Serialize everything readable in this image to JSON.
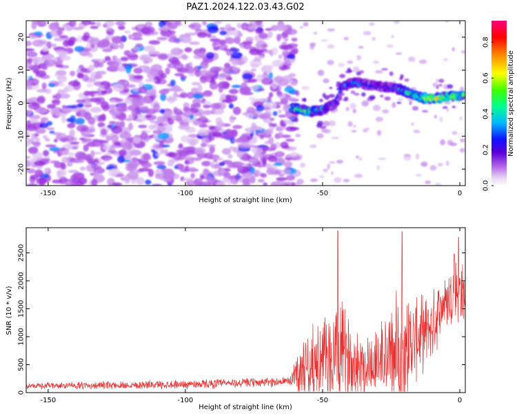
{
  "chart_data": [
    {
      "type": "heatmap",
      "title": "PAZ1.2024.122.03.43.G02",
      "xlabel": "Height of straight line (km)",
      "ylabel": "Frequency (Hz)",
      "xlim": [
        -158,
        2
      ],
      "ylim": [
        -25,
        25
      ],
      "x_ticks": [
        -150,
        -100,
        -50,
        0
      ],
      "y_ticks": [
        -20,
        -10,
        0,
        10,
        20
      ],
      "grid": false,
      "colorbar": {
        "label": "Normalized spectral amplitude",
        "range": [
          0,
          0.92
        ],
        "ticks": [
          0.0,
          0.2,
          0.4,
          0.6,
          0.8
        ],
        "colormap": [
          "#ffffff",
          "#d8b4f0",
          "#9b30e0",
          "#6a00d0",
          "#1010ff",
          "#00c0ff",
          "#00ff80",
          "#40ff00",
          "#ffff00",
          "#ff8000",
          "#ff0000",
          "#ff0080"
        ]
      },
      "background_noise": {
        "x_range": [
          -158,
          -60
        ],
        "y_range": [
          -25,
          25
        ],
        "typical_amplitude": 0.1,
        "max_amplitude": 0.35
      },
      "ridge": {
        "description_points_x": [
          -61,
          -55,
          -50,
          -45,
          -43,
          -38,
          -33,
          -28,
          -23,
          -18,
          -13,
          -8,
          -3,
          2
        ],
        "description_points_y": [
          -1.5,
          -2.5,
          -2.0,
          0.0,
          5.0,
          6.5,
          5.5,
          5.0,
          4.5,
          3.0,
          1.5,
          1.5,
          2.0,
          2.5
        ],
        "amplitude": [
          0.45,
          0.5,
          0.35,
          0.25,
          0.3,
          0.35,
          0.3,
          0.25,
          0.3,
          0.45,
          0.55,
          0.7,
          0.55,
          0.45
        ]
      }
    },
    {
      "type": "line",
      "xlabel": "Height of straight line (km)",
      "ylabel": "SNR (10 * v/v)",
      "xlim": [
        -158,
        2
      ],
      "ylim": [
        0,
        2950
      ],
      "x_ticks": [
        -150,
        -100,
        -50,
        0
      ],
      "y_ticks": [
        0,
        500,
        1000,
        1500,
        2000,
        2500
      ],
      "grid": false,
      "series": [
        {
          "color": "#e83030",
          "envelope_x": [
            -158,
            -130,
            -100,
            -80,
            -62,
            -60,
            -55,
            -50,
            -46,
            -44,
            -42,
            -38,
            -34,
            -30,
            -26,
            -22,
            -20,
            -15,
            -10,
            -6,
            -3,
            -1,
            2
          ],
          "envelope_mean": [
            120,
            130,
            150,
            170,
            200,
            350,
            500,
            550,
            600,
            700,
            650,
            550,
            500,
            550,
            650,
            700,
            800,
            1000,
            1200,
            1600,
            1700,
            1900,
            1700
          ],
          "envelope_spread": [
            60,
            80,
            90,
            100,
            100,
            400,
            700,
            900,
            1100,
            1400,
            1000,
            800,
            700,
            800,
            1000,
            1300,
            1200,
            800,
            700,
            600,
            700,
            900,
            500
          ],
          "peaks": [
            [
              -44.5,
              2900
            ],
            [
              -21,
              2880
            ],
            [
              -0.5,
              2780
            ],
            [
              -2,
              2480
            ]
          ]
        }
      ]
    }
  ]
}
